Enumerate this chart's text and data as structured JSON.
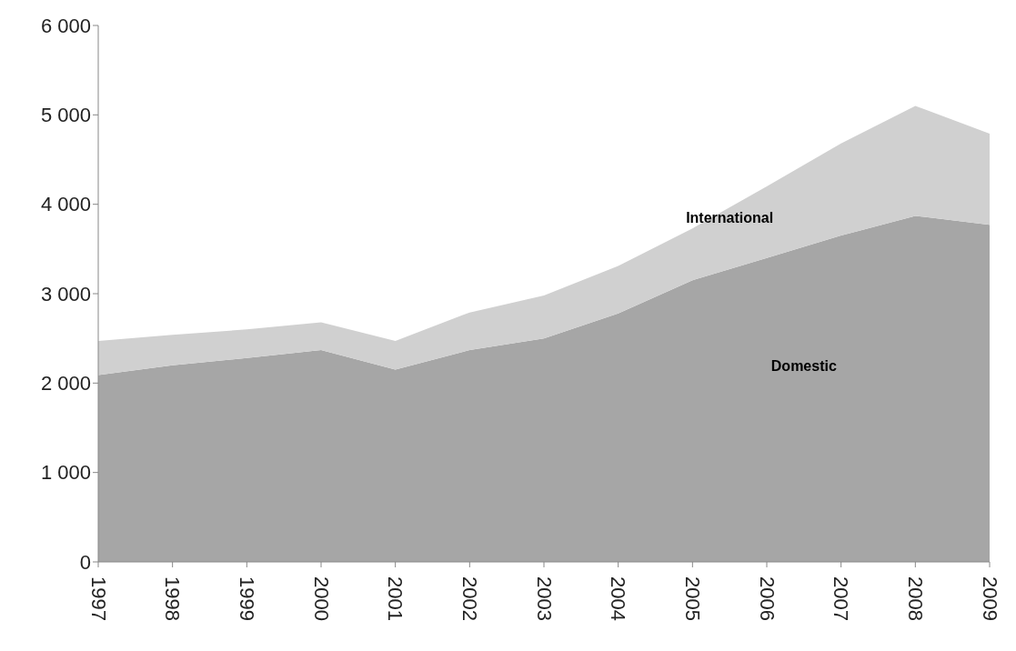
{
  "chart_data": {
    "type": "area",
    "stacked": true,
    "categories": [
      "1997",
      "1998",
      "1999",
      "2000",
      "2001",
      "2002",
      "2003",
      "2004",
      "2005",
      "2006",
      "2007",
      "2008",
      "2009"
    ],
    "series": [
      {
        "name": "Domestic",
        "color": "#a6a6a6",
        "values": [
          2090,
          2200,
          2280,
          2370,
          2150,
          2370,
          2500,
          2780,
          3150,
          3400,
          3650,
          3870,
          3770
        ]
      },
      {
        "name": "International",
        "color": "#d0d0d0",
        "values": [
          380,
          340,
          320,
          310,
          320,
          420,
          480,
          530,
          580,
          800,
          1030,
          1230,
          1020
        ]
      }
    ],
    "ylim": [
      0,
      6000
    ],
    "yticks": [
      0,
      {
        "value": 1000,
        "label": "1 000"
      },
      {
        "value": 2000,
        "label": "2 000"
      },
      {
        "value": 3000,
        "label": "3 000"
      },
      {
        "value": 4000,
        "label": "4 000"
      },
      {
        "value": 5000,
        "label": "5 000"
      },
      {
        "value": 6000,
        "label": "6 000"
      }
    ],
    "grid": false,
    "legend": false
  }
}
